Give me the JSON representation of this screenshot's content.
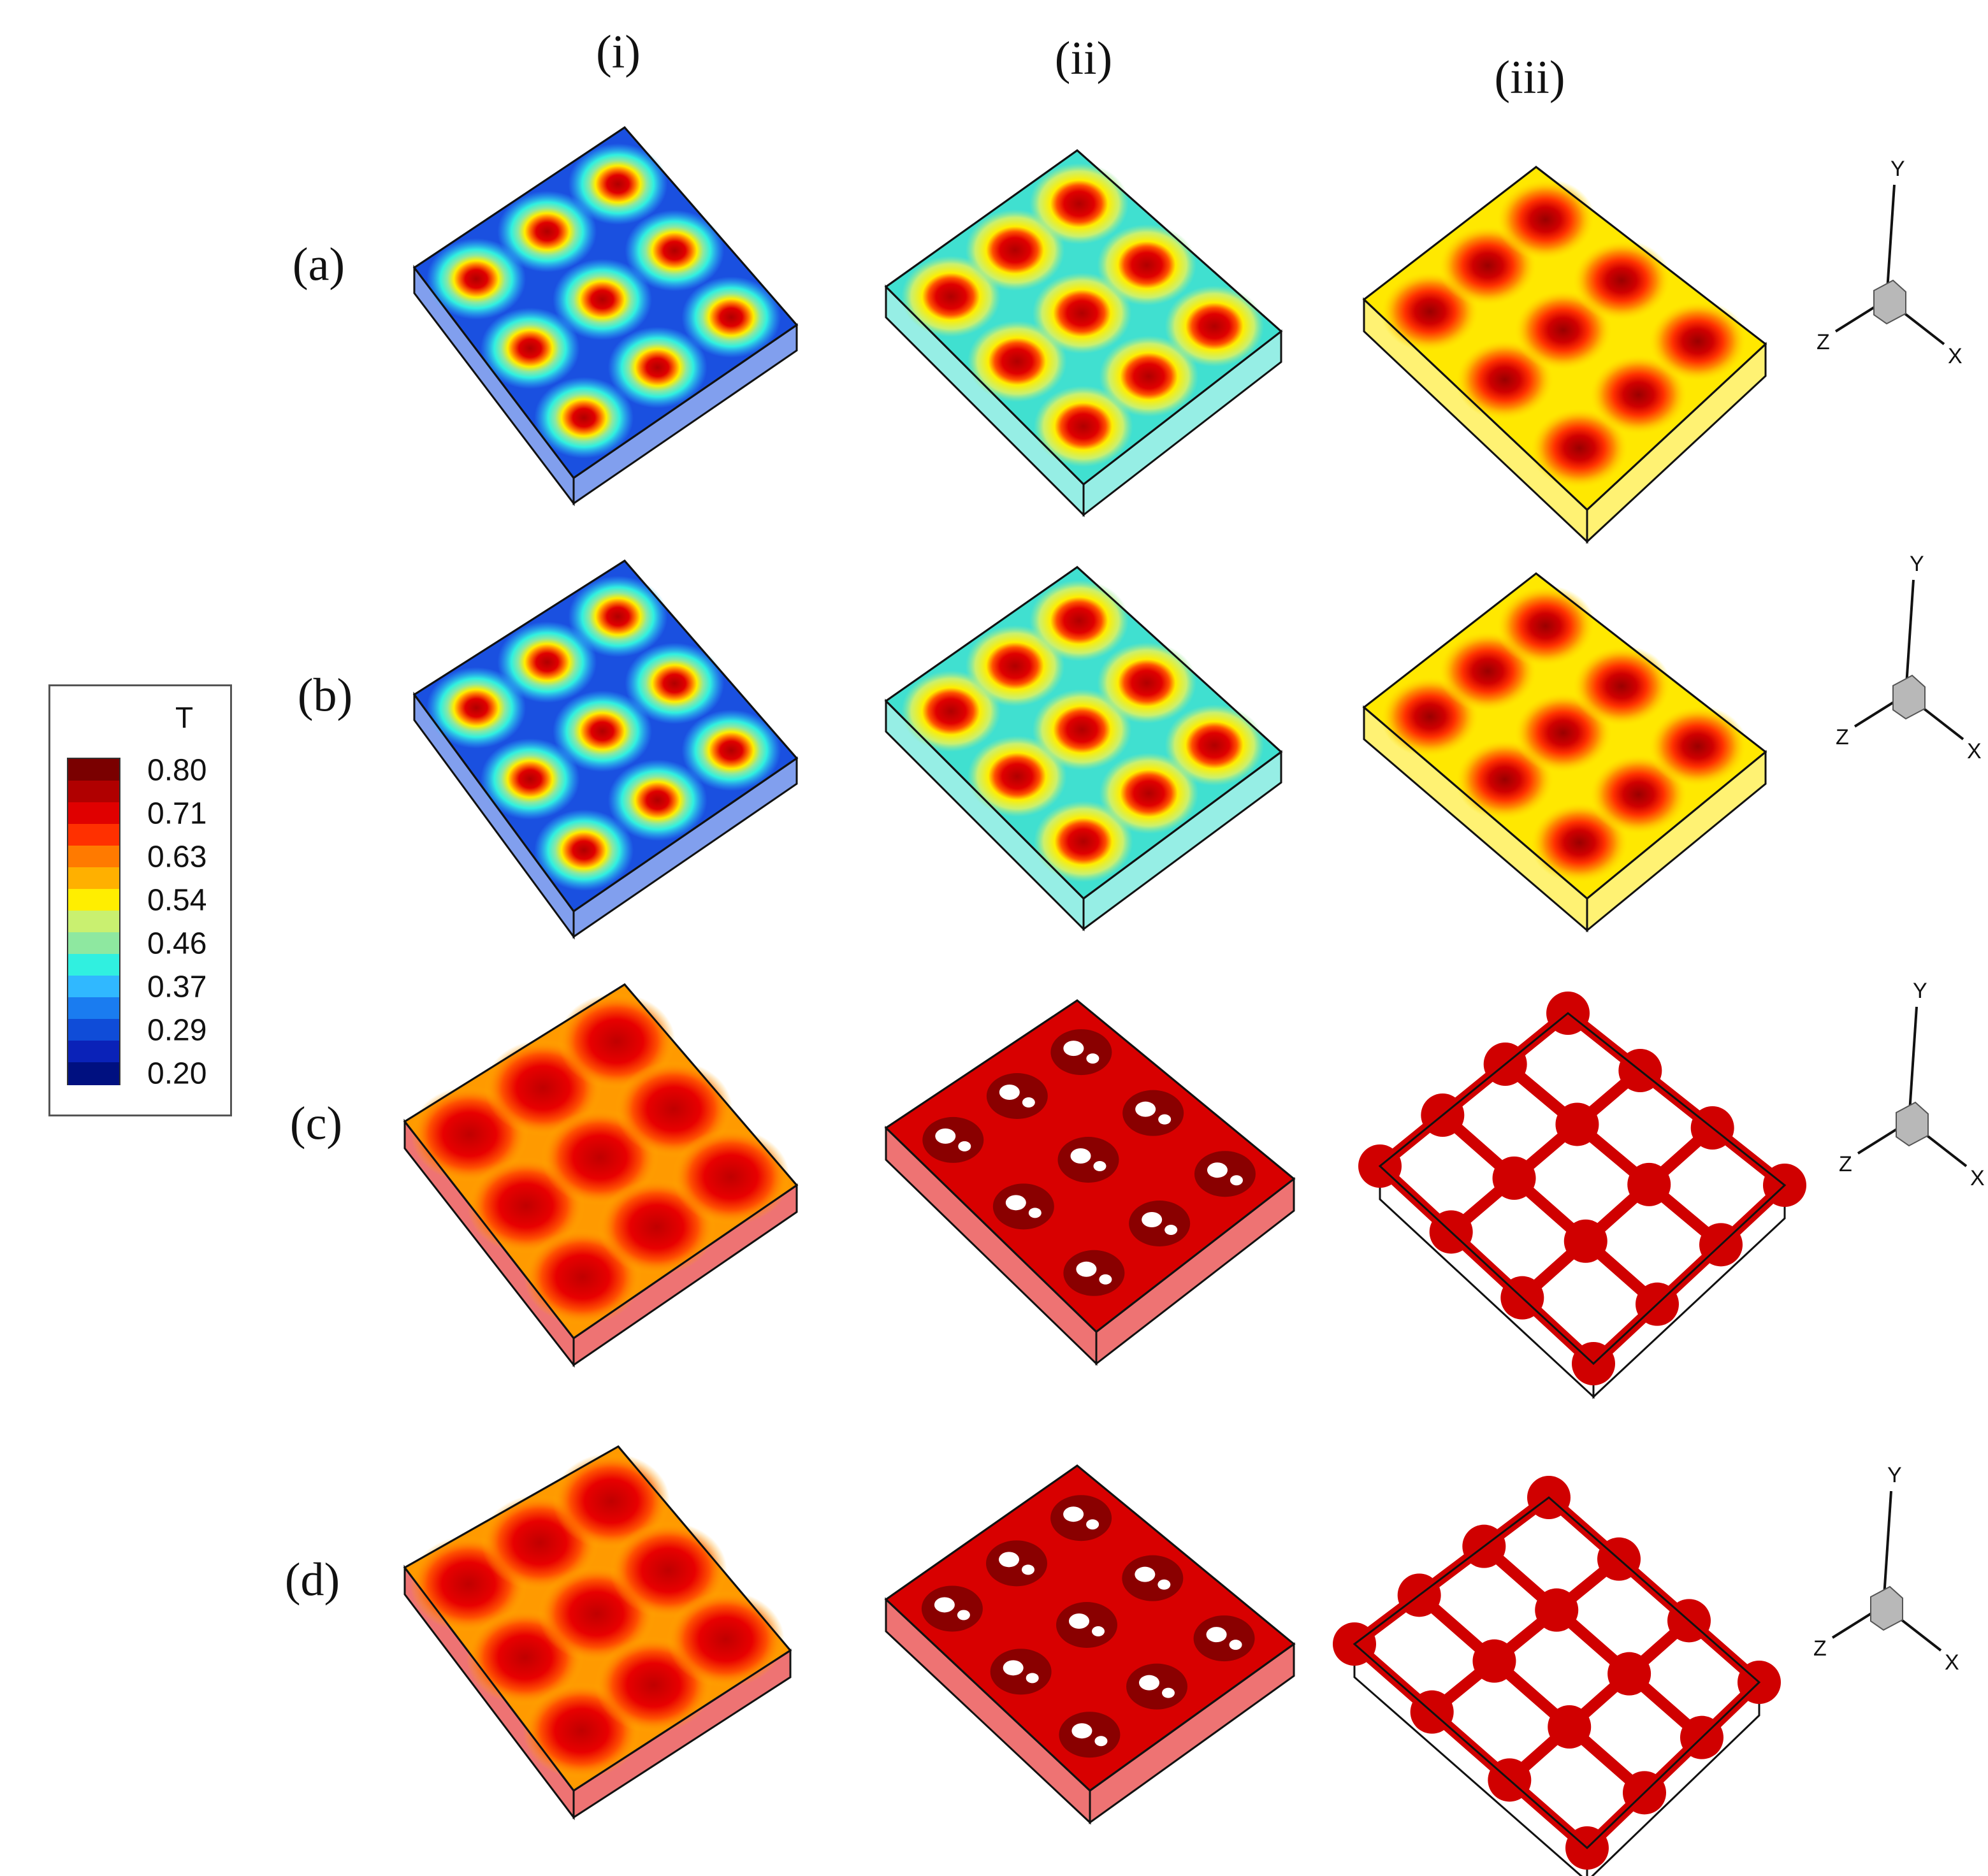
{
  "figure": {
    "column_labels": [
      "(i)",
      "(ii)",
      "(iii)"
    ],
    "row_labels": [
      "(a)",
      "(b)",
      "(c)",
      "(d)"
    ],
    "axis_labels": {
      "x": "X",
      "y": "Y",
      "z": "Z"
    },
    "legend": {
      "title": "T",
      "ticks": [
        "0.80",
        "0.71",
        "0.63",
        "0.54",
        "0.46",
        "0.37",
        "0.29",
        "0.20"
      ],
      "colors": [
        "#7a0000",
        "#b00000",
        "#e00000",
        "#ff3000",
        "#ff7a00",
        "#ffb000",
        "#ffee00",
        "#c9f070",
        "#8ee8a0",
        "#30f0e0",
        "#30b8ff",
        "#1a7cf0",
        "#0f4cd8",
        "#0a22b8",
        "#001080"
      ]
    },
    "panels": [
      [
        {
          "variant": "blue-cells",
          "cells": 3
        },
        {
          "variant": "green-cells",
          "cells": 3
        },
        {
          "variant": "yellow-cells",
          "cells": 3
        }
      ],
      [
        {
          "variant": "blue-cells",
          "cells": 3
        },
        {
          "variant": "green-cells",
          "cells": 3
        },
        {
          "variant": "yellow-cells",
          "cells": 3
        }
      ],
      [
        {
          "variant": "red-field",
          "cells": 3
        },
        {
          "variant": "red-holes",
          "cells": 3
        },
        {
          "variant": "red-network",
          "cells": 3
        }
      ],
      [
        {
          "variant": "red-field",
          "cells": 3
        },
        {
          "variant": "red-holes",
          "cells": 3
        },
        {
          "variant": "red-network",
          "cells": 3
        }
      ]
    ]
  }
}
